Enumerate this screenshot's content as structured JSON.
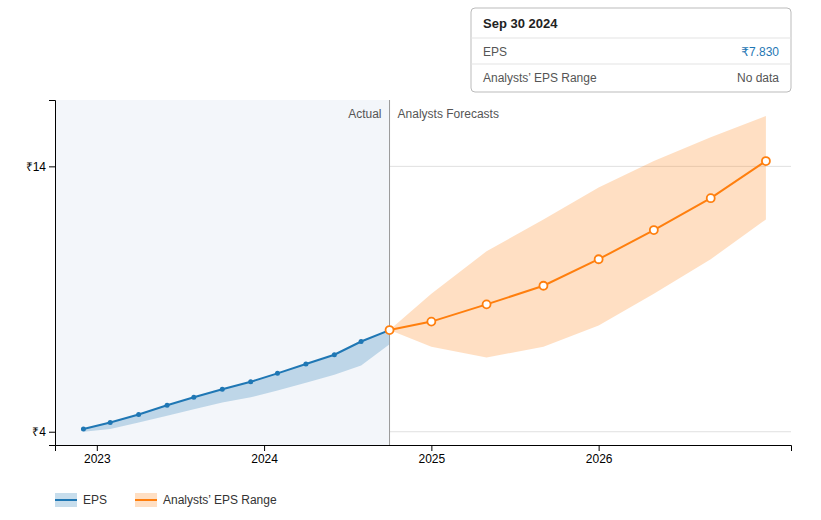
{
  "chart_data": {
    "type": "line",
    "xlim": [
      2022.75,
      2027.15
    ],
    "xticks": [
      2023,
      2024,
      2025,
      2026
    ],
    "ylim": [
      3.5,
      16.5
    ],
    "yticks": [
      {
        "value": 4,
        "label": "₹4"
      },
      {
        "value": 14,
        "label": "₹14"
      }
    ],
    "grid": true,
    "legend": "bottom",
    "divider_x": 2024.75,
    "annotations": [
      "Actual",
      "Analysts Forecasts"
    ],
    "tooltip": {
      "title": "Sep 30 2024",
      "rows": [
        {
          "name": "EPS",
          "label": "₹7.830"
        },
        {
          "name": "Analysts’ EPS Range",
          "label": "No data"
        }
      ]
    },
    "series": [
      {
        "name": "EPS",
        "marker": "circle",
        "x": [
          2022.92,
          2023.08,
          2023.25,
          2023.42,
          2023.58,
          2023.75,
          2023.92,
          2024.08,
          2024.25,
          2024.42,
          2024.58,
          2024.75
        ],
        "values": [
          4.1,
          4.35,
          4.65,
          5.0,
          5.3,
          5.6,
          5.88,
          6.2,
          6.55,
          6.9,
          7.4,
          7.83
        ],
        "lower": [
          4.0,
          4.1,
          4.35,
          4.6,
          4.85,
          5.1,
          5.3,
          5.55,
          5.85,
          6.15,
          6.5,
          7.3
        ]
      },
      {
        "name": "Analysts’ EPS Range",
        "marker": "hollow-circle",
        "x": [
          2024.75,
          2025.0,
          2025.33,
          2025.67,
          2026.0,
          2026.33,
          2026.67,
          2027.0
        ],
        "values": [
          7.83,
          8.15,
          8.8,
          9.5,
          10.5,
          11.6,
          12.8,
          14.2
        ],
        "upper": [
          7.83,
          9.2,
          10.8,
          12.0,
          13.2,
          14.2,
          15.1,
          15.9
        ],
        "lower": [
          7.83,
          7.2,
          6.8,
          7.2,
          8.0,
          9.2,
          10.5,
          12.0
        ]
      }
    ]
  }
}
